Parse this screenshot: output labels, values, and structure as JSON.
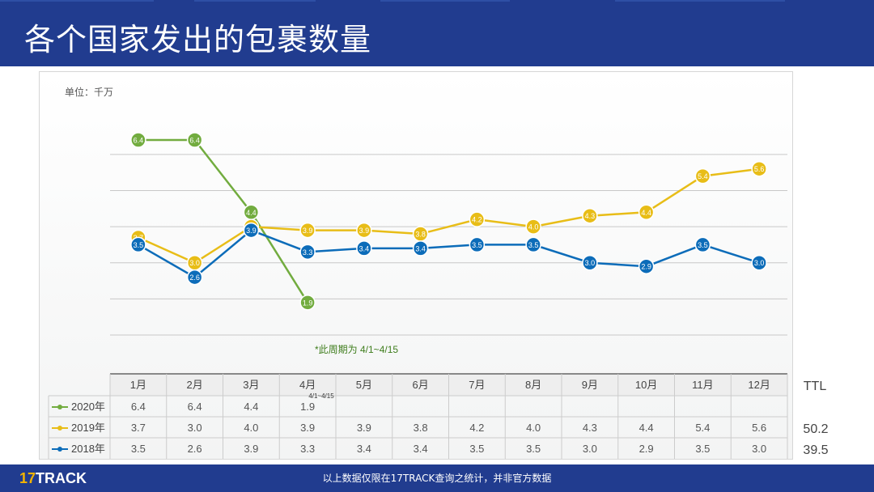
{
  "header": {
    "title": "各个国家发出的包裹数量"
  },
  "footer": {
    "logo_num": "17",
    "logo_text": "TRACK",
    "note": "以上数据仅限在17TRACK查询之统计，并非官方数据"
  },
  "colors": {
    "header_bg": "#213c8f",
    "s2020": "#72ac3f",
    "s2019": "#e8bd17",
    "s2018": "#0c6cb9",
    "grid": "#c8c8c8"
  },
  "chart_data": {
    "type": "line",
    "unit_label": "单位：千万",
    "categories": [
      "1月",
      "2月",
      "3月",
      "4月",
      "5月",
      "6月",
      "7月",
      "8月",
      "9月",
      "10月",
      "11月",
      "12月"
    ],
    "ylim": [
      1,
      6.4
    ],
    "grid": true,
    "annotation": "*此周期为 4/1~4/15",
    "table_note": "4/1~4/15",
    "ttl_header": "TTL",
    "series": [
      {
        "name": "2020年",
        "color": "#72ac3f",
        "values": [
          6.4,
          6.4,
          4.4,
          1.9,
          null,
          null,
          null,
          null,
          null,
          null,
          null,
          null
        ],
        "ttl": ""
      },
      {
        "name": "2019年",
        "color": "#e8bd17",
        "values": [
          3.7,
          3.0,
          4.0,
          3.9,
          3.9,
          3.8,
          4.2,
          4.0,
          4.3,
          4.4,
          5.4,
          5.6
        ],
        "ttl": "50.2"
      },
      {
        "name": "2018年",
        "color": "#0c6cb9",
        "values": [
          3.5,
          2.6,
          3.9,
          3.3,
          3.4,
          3.4,
          3.5,
          3.5,
          3.0,
          2.9,
          3.5,
          3.0
        ],
        "ttl": "39.5"
      }
    ]
  }
}
